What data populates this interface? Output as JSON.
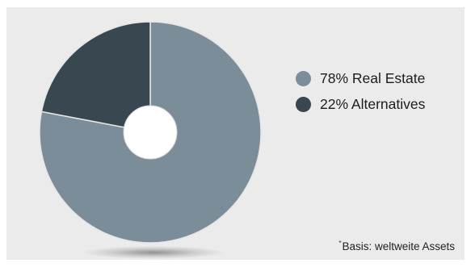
{
  "chart_data": {
    "type": "pie",
    "variant": "donut",
    "slices": [
      {
        "label": "Real Estate",
        "value": 78,
        "display": "78% Real Estate",
        "color": "#7c8d9a"
      },
      {
        "label": "Alternatives",
        "value": 22,
        "display": "22% Alternatives",
        "color": "#384750"
      }
    ],
    "legend_position": "right",
    "footnote": {
      "marker": "*",
      "text": "Basis: weltweite Assets"
    }
  }
}
